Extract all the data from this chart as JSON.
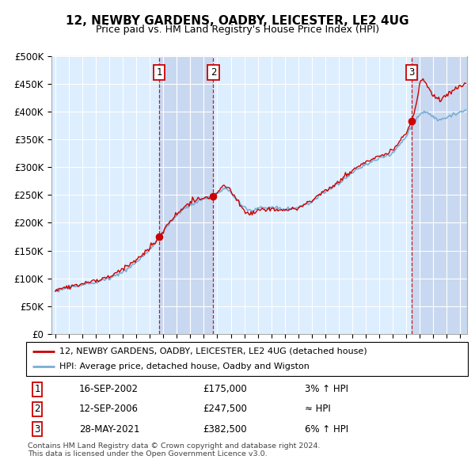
{
  "title": "12, NEWBY GARDENS, OADBY, LEICESTER, LE2 4UG",
  "subtitle": "Price paid vs. HM Land Registry's House Price Index (HPI)",
  "sale_dates_num": [
    2002.708,
    2006.708,
    2021.41
  ],
  "sale_prices": [
    175000,
    247500,
    382500
  ],
  "sale_labels": [
    "1",
    "2",
    "3"
  ],
  "sale_info": [
    [
      "1",
      "16-SEP-2002",
      "£175,000",
      "3% ↑ HPI"
    ],
    [
      "2",
      "12-SEP-2006",
      "£247,500",
      "≈ HPI"
    ],
    [
      "3",
      "28-MAY-2021",
      "£382,500",
      "6% ↑ HPI"
    ]
  ],
  "legend_line1": "12, NEWBY GARDENS, OADBY, LEICESTER, LE2 4UG (detached house)",
  "legend_line2": "HPI: Average price, detached house, Oadby and Wigston",
  "footnote1": "Contains HM Land Registry data © Crown copyright and database right 2024.",
  "footnote2": "This data is licensed under the Open Government Licence v3.0.",
  "hpi_color": "#7aadd4",
  "price_color": "#cc0000",
  "dashed_color": "#cc0000",
  "background_plot": "#ddeeff",
  "highlight_color": "#c8d8f0",
  "grid_color": "#ffffff",
  "ylim": [
    0,
    500000
  ],
  "ytick_vals": [
    0,
    50000,
    100000,
    150000,
    200000,
    250000,
    300000,
    350000,
    400000,
    450000,
    500000
  ],
  "ytick_labels": [
    "£0",
    "£50K",
    "£100K",
    "£150K",
    "£200K",
    "£250K",
    "£300K",
    "£350K",
    "£400K",
    "£450K",
    "£500K"
  ],
  "xstart": 1994.7,
  "xend": 2025.5,
  "xticks": [
    1995,
    1996,
    1997,
    1998,
    1999,
    2000,
    2001,
    2002,
    2003,
    2004,
    2005,
    2006,
    2007,
    2008,
    2009,
    2010,
    2011,
    2012,
    2013,
    2014,
    2015,
    2016,
    2017,
    2018,
    2019,
    2020,
    2021,
    2022,
    2023,
    2024,
    2025
  ]
}
